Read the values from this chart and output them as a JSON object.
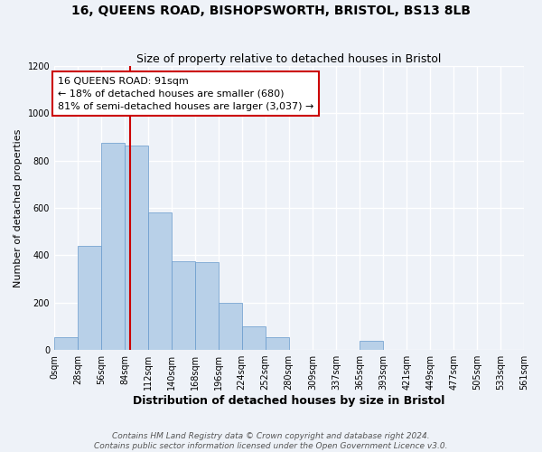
{
  "title": "16, QUEENS ROAD, BISHOPSWORTH, BRISTOL, BS13 8LB",
  "subtitle": "Size of property relative to detached houses in Bristol",
  "xlabel": "Distribution of detached houses by size in Bristol",
  "ylabel": "Number of detached properties",
  "bin_edges": [
    0,
    28,
    56,
    84,
    112,
    140,
    168,
    196,
    224,
    252,
    280,
    309,
    337,
    365,
    393,
    421,
    449,
    477,
    505,
    533,
    561
  ],
  "bar_heights": [
    55,
    440,
    875,
    865,
    580,
    375,
    370,
    200,
    100,
    55,
    0,
    0,
    0,
    40,
    0,
    0,
    0,
    0,
    0,
    0
  ],
  "property_size": 91,
  "annotation_text": "16 QUEENS ROAD: 91sqm\n← 18% of detached houses are smaller (680)\n81% of semi-detached houses are larger (3,037) →",
  "bar_color": "#b8d0e8",
  "bar_edge_color": "#6699cc",
  "vline_color": "#cc0000",
  "annotation_box_edge_color": "#cc0000",
  "background_color": "#eef2f8",
  "grid_color": "#ffffff",
  "footer_text": "Contains HM Land Registry data © Crown copyright and database right 2024.\nContains public sector information licensed under the Open Government Licence v3.0.",
  "ylim": [
    0,
    1200
  ],
  "yticks": [
    0,
    200,
    400,
    600,
    800,
    1000,
    1200
  ],
  "title_fontsize": 10,
  "subtitle_fontsize": 9,
  "xlabel_fontsize": 9,
  "ylabel_fontsize": 8,
  "tick_fontsize": 7,
  "footer_fontsize": 6.5
}
